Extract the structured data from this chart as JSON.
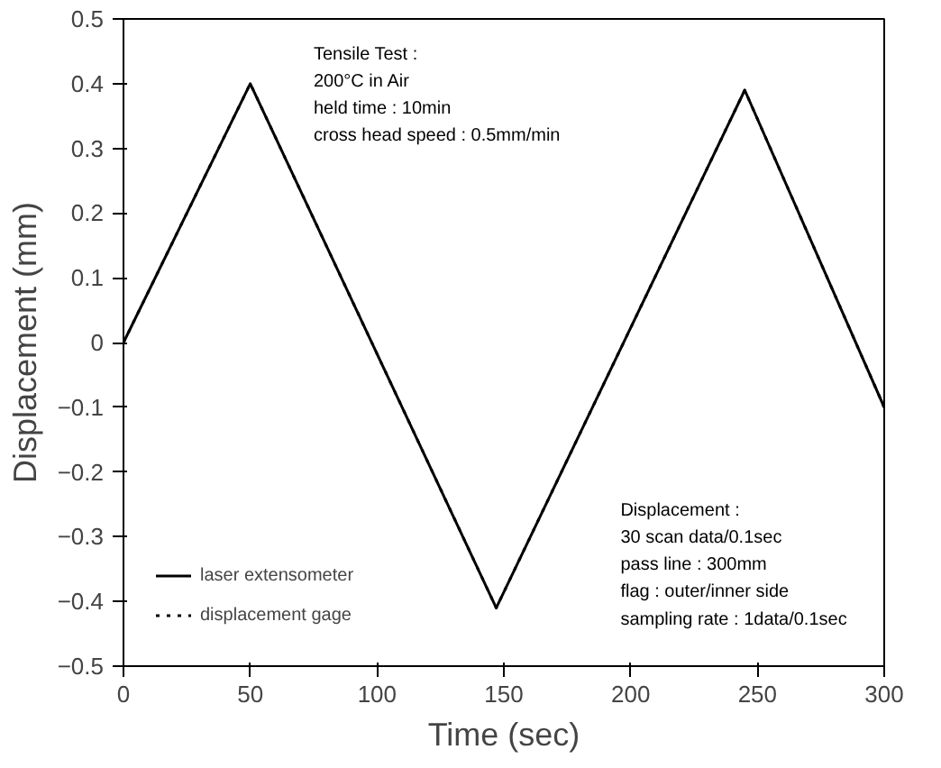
{
  "chart_data": {
    "type": "line",
    "xlabel": "Time (sec)",
    "ylabel": "Displacement (mm)",
    "x": [
      0,
      50,
      147,
      245,
      300
    ],
    "series": [
      {
        "name": "laser extensometer",
        "color": "#000000",
        "values": [
          0,
          0.4,
          -0.41,
          0.39,
          -0.1
        ],
        "line_style": "solid"
      },
      {
        "name": "displacement gage",
        "color": "#000000",
        "values": [
          0,
          0.4,
          -0.41,
          0.39,
          -0.1
        ],
        "line_style": "dotted"
      }
    ],
    "xlim": [
      0,
      300
    ],
    "xticks": [
      0,
      50,
      100,
      150,
      200,
      250,
      300
    ],
    "ylim": [
      -0.5,
      0.5
    ],
    "yticks": [
      {
        "value": -0.5,
        "label": "−0.5"
      },
      {
        "value": -0.4,
        "label": "−0.4"
      },
      {
        "value": -0.3,
        "label": "−0.3"
      },
      {
        "value": -0.2,
        "label": "−0.2"
      },
      {
        "value": -0.1,
        "label": "−0.1"
      },
      0,
      0.1,
      0.2,
      0.3,
      0.4,
      0.5
    ],
    "legend": "bottom left",
    "grid": false,
    "annotations": [
      "Tensile Test :\n200°C in Air\nheld time : 10min\ncross head speed : 0.5mm/min",
      "Displacement :\n30 scan data/0.1sec\npass line : 300mm\nflag : outer/inner side\nsampling rate : 1data/0.1sec"
    ]
  }
}
